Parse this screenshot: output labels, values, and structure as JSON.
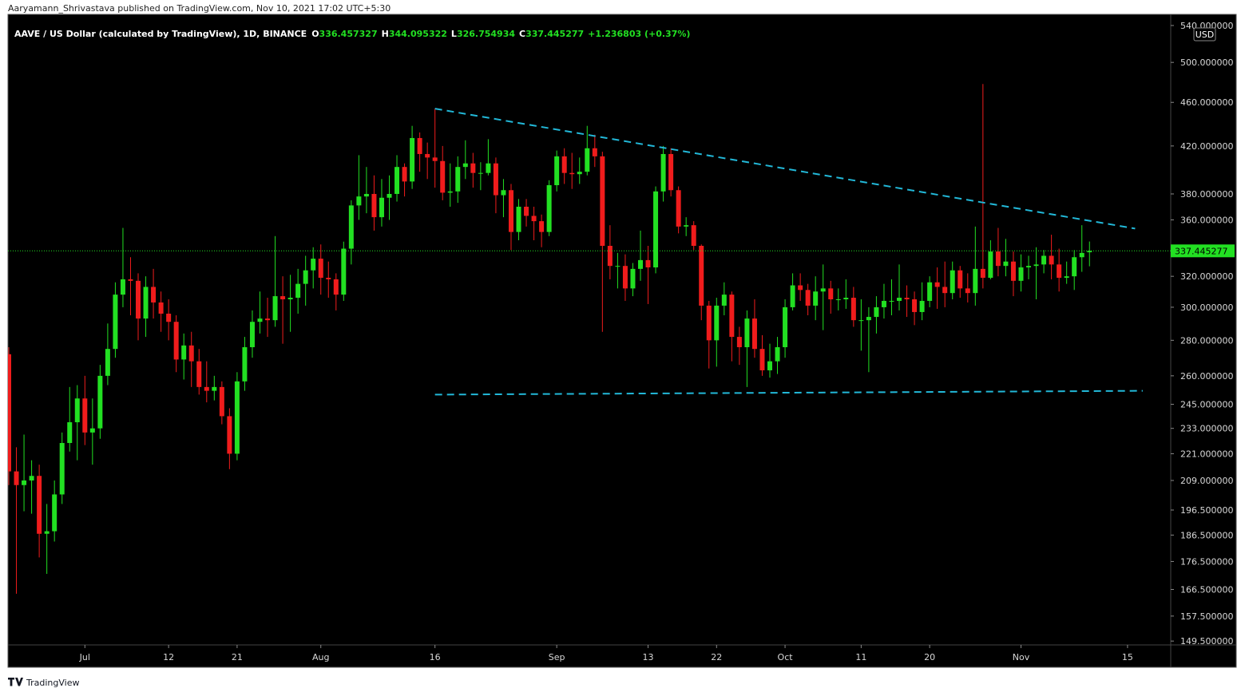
{
  "header": {
    "publisher": "Aaryamann_Shrivastava published on TradingView.com, Nov 10, 2021 17:02 UTC+5:30"
  },
  "footer": {
    "brand": "TradingView"
  },
  "chart_data": {
    "type": "candlestick",
    "title": "AAVE / US Dollar (calculated by TradingView), 1D, BINANCE",
    "ohlc_labels": [
      "O",
      "H",
      "L",
      "C"
    ],
    "change_text": "+1.236803 (+0.37%)",
    "currency": "USD",
    "up_color": "#22e022",
    "down_color": "#f01c1c",
    "trendline_color": "#22b8d8",
    "background": "#000000",
    "log_y": true,
    "ylim": [
      148.3,
      552.7
    ],
    "yticks": [
      {
        "value": 149.5,
        "label": "149.500000"
      },
      {
        "value": 157.5,
        "label": "157.500000"
      },
      {
        "value": 166.5,
        "label": "166.500000"
      },
      {
        "value": 176.5,
        "label": "176.500000"
      },
      {
        "value": 186.5,
        "label": "186.500000"
      },
      {
        "value": 196.5,
        "label": "196.500000"
      },
      {
        "value": 209,
        "label": "209.000000"
      },
      {
        "value": 221,
        "label": "221.000000"
      },
      {
        "value": 233,
        "label": "233.000000"
      },
      {
        "value": 245,
        "label": "245.000000"
      },
      {
        "value": 260,
        "label": "260.000000"
      },
      {
        "value": 280,
        "label": "280.000000"
      },
      {
        "value": 300,
        "label": "300.000000"
      },
      {
        "value": 320,
        "label": "320.000000"
      },
      {
        "value": 360,
        "label": "360.000000"
      },
      {
        "value": 380,
        "label": "380.000000"
      },
      {
        "value": 420,
        "label": "420.000000"
      },
      {
        "value": 460,
        "label": "460.000000"
      },
      {
        "value": 500,
        "label": "500.000000"
      },
      {
        "value": 540,
        "label": "540.000000"
      }
    ],
    "categories": [
      null,
      null,
      null,
      null,
      null,
      null,
      null,
      null,
      null,
      null,
      "Jul",
      null,
      null,
      null,
      null,
      null,
      null,
      null,
      null,
      null,
      null,
      "12",
      null,
      null,
      null,
      null,
      null,
      null,
      null,
      null,
      "21",
      null,
      null,
      null,
      null,
      null,
      null,
      null,
      null,
      null,
      null,
      "Aug",
      null,
      null,
      null,
      null,
      null,
      null,
      null,
      null,
      null,
      null,
      null,
      null,
      null,
      null,
      "16",
      null,
      null,
      null,
      null,
      null,
      null,
      null,
      null,
      null,
      null,
      null,
      null,
      null,
      null,
      null,
      "Sep",
      null,
      null,
      null,
      null,
      null,
      null,
      null,
      null,
      null,
      null,
      null,
      "13",
      null,
      null,
      null,
      null,
      null,
      null,
      null,
      null,
      "22",
      null,
      null,
      null,
      null,
      null,
      null,
      null,
      null,
      "Oct",
      null,
      null,
      null,
      null,
      null,
      null,
      null,
      null,
      null,
      "11",
      null,
      null,
      null,
      null,
      null,
      null,
      null,
      null,
      "20",
      null,
      null,
      null,
      null,
      null,
      null,
      null,
      null,
      null,
      null,
      null,
      "Nov",
      null,
      null,
      null,
      null,
      null,
      null,
      null,
      null,
      null,
      null,
      null,
      null,
      null,
      "15",
      null,
      null,
      null,
      null
    ],
    "open": [
      272,
      213,
      207,
      209,
      211,
      187,
      188,
      203,
      226,
      236,
      248,
      231,
      233,
      260,
      275,
      308,
      318,
      317,
      293,
      313,
      303,
      296,
      291,
      269,
      277,
      268,
      254,
      252,
      254,
      239,
      221,
      257,
      276,
      291,
      293,
      292,
      307,
      305,
      306,
      315,
      324,
      332,
      319,
      318,
      308,
      339,
      371,
      378,
      380,
      362,
      377,
      380,
      402,
      390,
      427,
      413,
      410,
      407,
      381,
      382,
      402,
      405,
      397,
      397,
      405,
      379,
      383,
      351,
      370,
      363,
      359,
      351,
      387,
      411,
      397,
      396,
      398,
      418,
      411,
      341,
      327,
      327,
      312,
      325,
      331,
      326,
      382,
      413,
      383,
      355,
      356,
      341,
      301,
      280,
      301,
      308,
      282,
      276,
      293,
      275,
      263,
      268,
      276,
      300,
      314,
      311,
      301,
      310,
      312,
      305,
      305,
      306,
      292,
      292,
      294,
      300,
      304,
      304,
      306,
      305,
      297,
      304,
      316,
      313,
      309,
      324,
      312,
      309,
      325,
      319,
      337,
      327,
      330,
      317,
      326,
      327,
      328,
      334,
      328,
      319,
      320,
      333,
      336.457327,
      null,
      null,
      null,
      null,
      null,
      null,
      null,
      null,
      null
    ],
    "high": [
      276,
      224,
      230,
      218,
      216,
      199,
      209,
      231,
      254,
      255,
      260,
      248,
      266,
      290,
      316,
      354,
      333,
      322,
      320,
      325,
      310,
      305,
      295,
      284,
      285,
      275,
      268,
      260,
      257,
      243,
      262,
      282,
      298,
      310,
      306,
      348,
      320,
      321,
      325,
      334,
      340,
      342,
      330,
      322,
      344,
      375,
      412,
      402,
      395,
      392,
      395,
      412,
      405,
      438,
      432,
      423,
      454,
      420,
      405,
      411,
      425,
      414,
      406,
      426,
      410,
      392,
      388,
      376,
      376,
      370,
      364,
      391,
      416,
      418,
      414,
      410,
      438,
      430,
      415,
      356,
      336,
      335,
      329,
      352,
      341,
      386,
      420,
      418,
      386,
      362,
      359,
      342,
      304,
      306,
      316,
      310,
      288,
      298,
      305,
      283,
      278,
      282,
      305,
      322,
      322,
      315,
      320,
      328,
      317,
      312,
      318,
      313,
      305,
      300,
      307,
      315,
      318,
      328,
      314,
      310,
      316,
      320,
      326,
      330,
      330,
      327,
      322,
      355,
      478,
      345,
      354,
      346,
      337,
      335,
      334,
      340,
      338,
      349,
      339,
      330,
      338,
      356,
      344.095322,
      null,
      null,
      null,
      null,
      null,
      null,
      null,
      null,
      null
    ],
    "low": [
      207,
      165,
      196,
      195,
      178,
      172,
      184,
      199,
      222,
      218,
      225,
      216,
      228,
      255,
      270,
      300,
      295,
      280,
      282,
      293,
      285,
      280,
      262,
      258,
      254,
      250,
      246,
      247,
      235,
      214,
      218,
      252,
      270,
      284,
      282,
      288,
      278,
      285,
      296,
      301,
      312,
      308,
      306,
      298,
      304,
      328,
      360,
      365,
      352,
      355,
      360,
      374,
      378,
      384,
      398,
      392,
      385,
      375,
      370,
      373,
      392,
      385,
      383,
      395,
      365,
      362,
      338,
      345,
      355,
      345,
      340,
      348,
      382,
      388,
      384,
      388,
      395,
      402,
      285,
      318,
      312,
      304,
      307,
      317,
      302,
      322,
      374,
      378,
      350,
      348,
      338,
      292,
      264,
      265,
      295,
      268,
      266,
      254,
      270,
      260,
      259,
      261,
      270,
      298,
      304,
      295,
      292,
      286,
      296,
      298,
      299,
      288,
      274,
      262,
      284,
      293,
      295,
      298,
      294,
      289,
      292,
      300,
      299,
      300,
      305,
      306,
      303,
      301,
      312,
      318,
      320,
      320,
      307,
      310,
      318,
      305,
      322,
      318,
      310,
      315,
      311,
      323,
      326.754934,
      null,
      null,
      null,
      null,
      null,
      null,
      null,
      null,
      null
    ],
    "close": [
      213,
      207,
      209,
      211,
      187,
      188,
      203,
      226,
      236,
      248,
      231,
      233,
      260,
      275,
      308,
      318,
      317,
      293,
      313,
      303,
      296,
      291,
      269,
      277,
      268,
      254,
      252,
      254,
      239,
      221,
      257,
      276,
      291,
      293,
      292,
      307,
      305,
      306,
      315,
      324,
      332,
      319,
      318,
      308,
      339,
      371,
      378,
      380,
      362,
      377,
      380,
      402,
      390,
      427,
      413,
      410,
      407,
      381,
      382,
      402,
      405,
      397,
      397,
      405,
      379,
      383,
      351,
      370,
      363,
      359,
      351,
      387,
      411,
      397,
      396,
      398,
      418,
      411,
      341,
      327,
      327,
      312,
      325,
      331,
      326,
      382,
      413,
      383,
      355,
      356,
      341,
      301,
      280,
      301,
      308,
      282,
      276,
      293,
      275,
      263,
      268,
      276,
      300,
      314,
      311,
      301,
      310,
      312,
      305,
      305,
      306,
      292,
      292,
      294,
      300,
      304,
      304,
      306,
      305,
      297,
      304,
      316,
      313,
      309,
      324,
      312,
      309,
      325,
      319,
      337,
      327,
      330,
      317,
      326,
      327,
      328,
      334,
      328,
      319,
      320,
      333,
      336,
      337.445277,
      null,
      null,
      null,
      null,
      null,
      null,
      null,
      null,
      null
    ],
    "trendlines": [
      {
        "x": [
          56,
          148
        ],
        "y": [
          454,
          353.5
        ]
      },
      {
        "x": [
          56,
          149
        ],
        "y": [
          250,
          252
        ]
      }
    ]
  }
}
